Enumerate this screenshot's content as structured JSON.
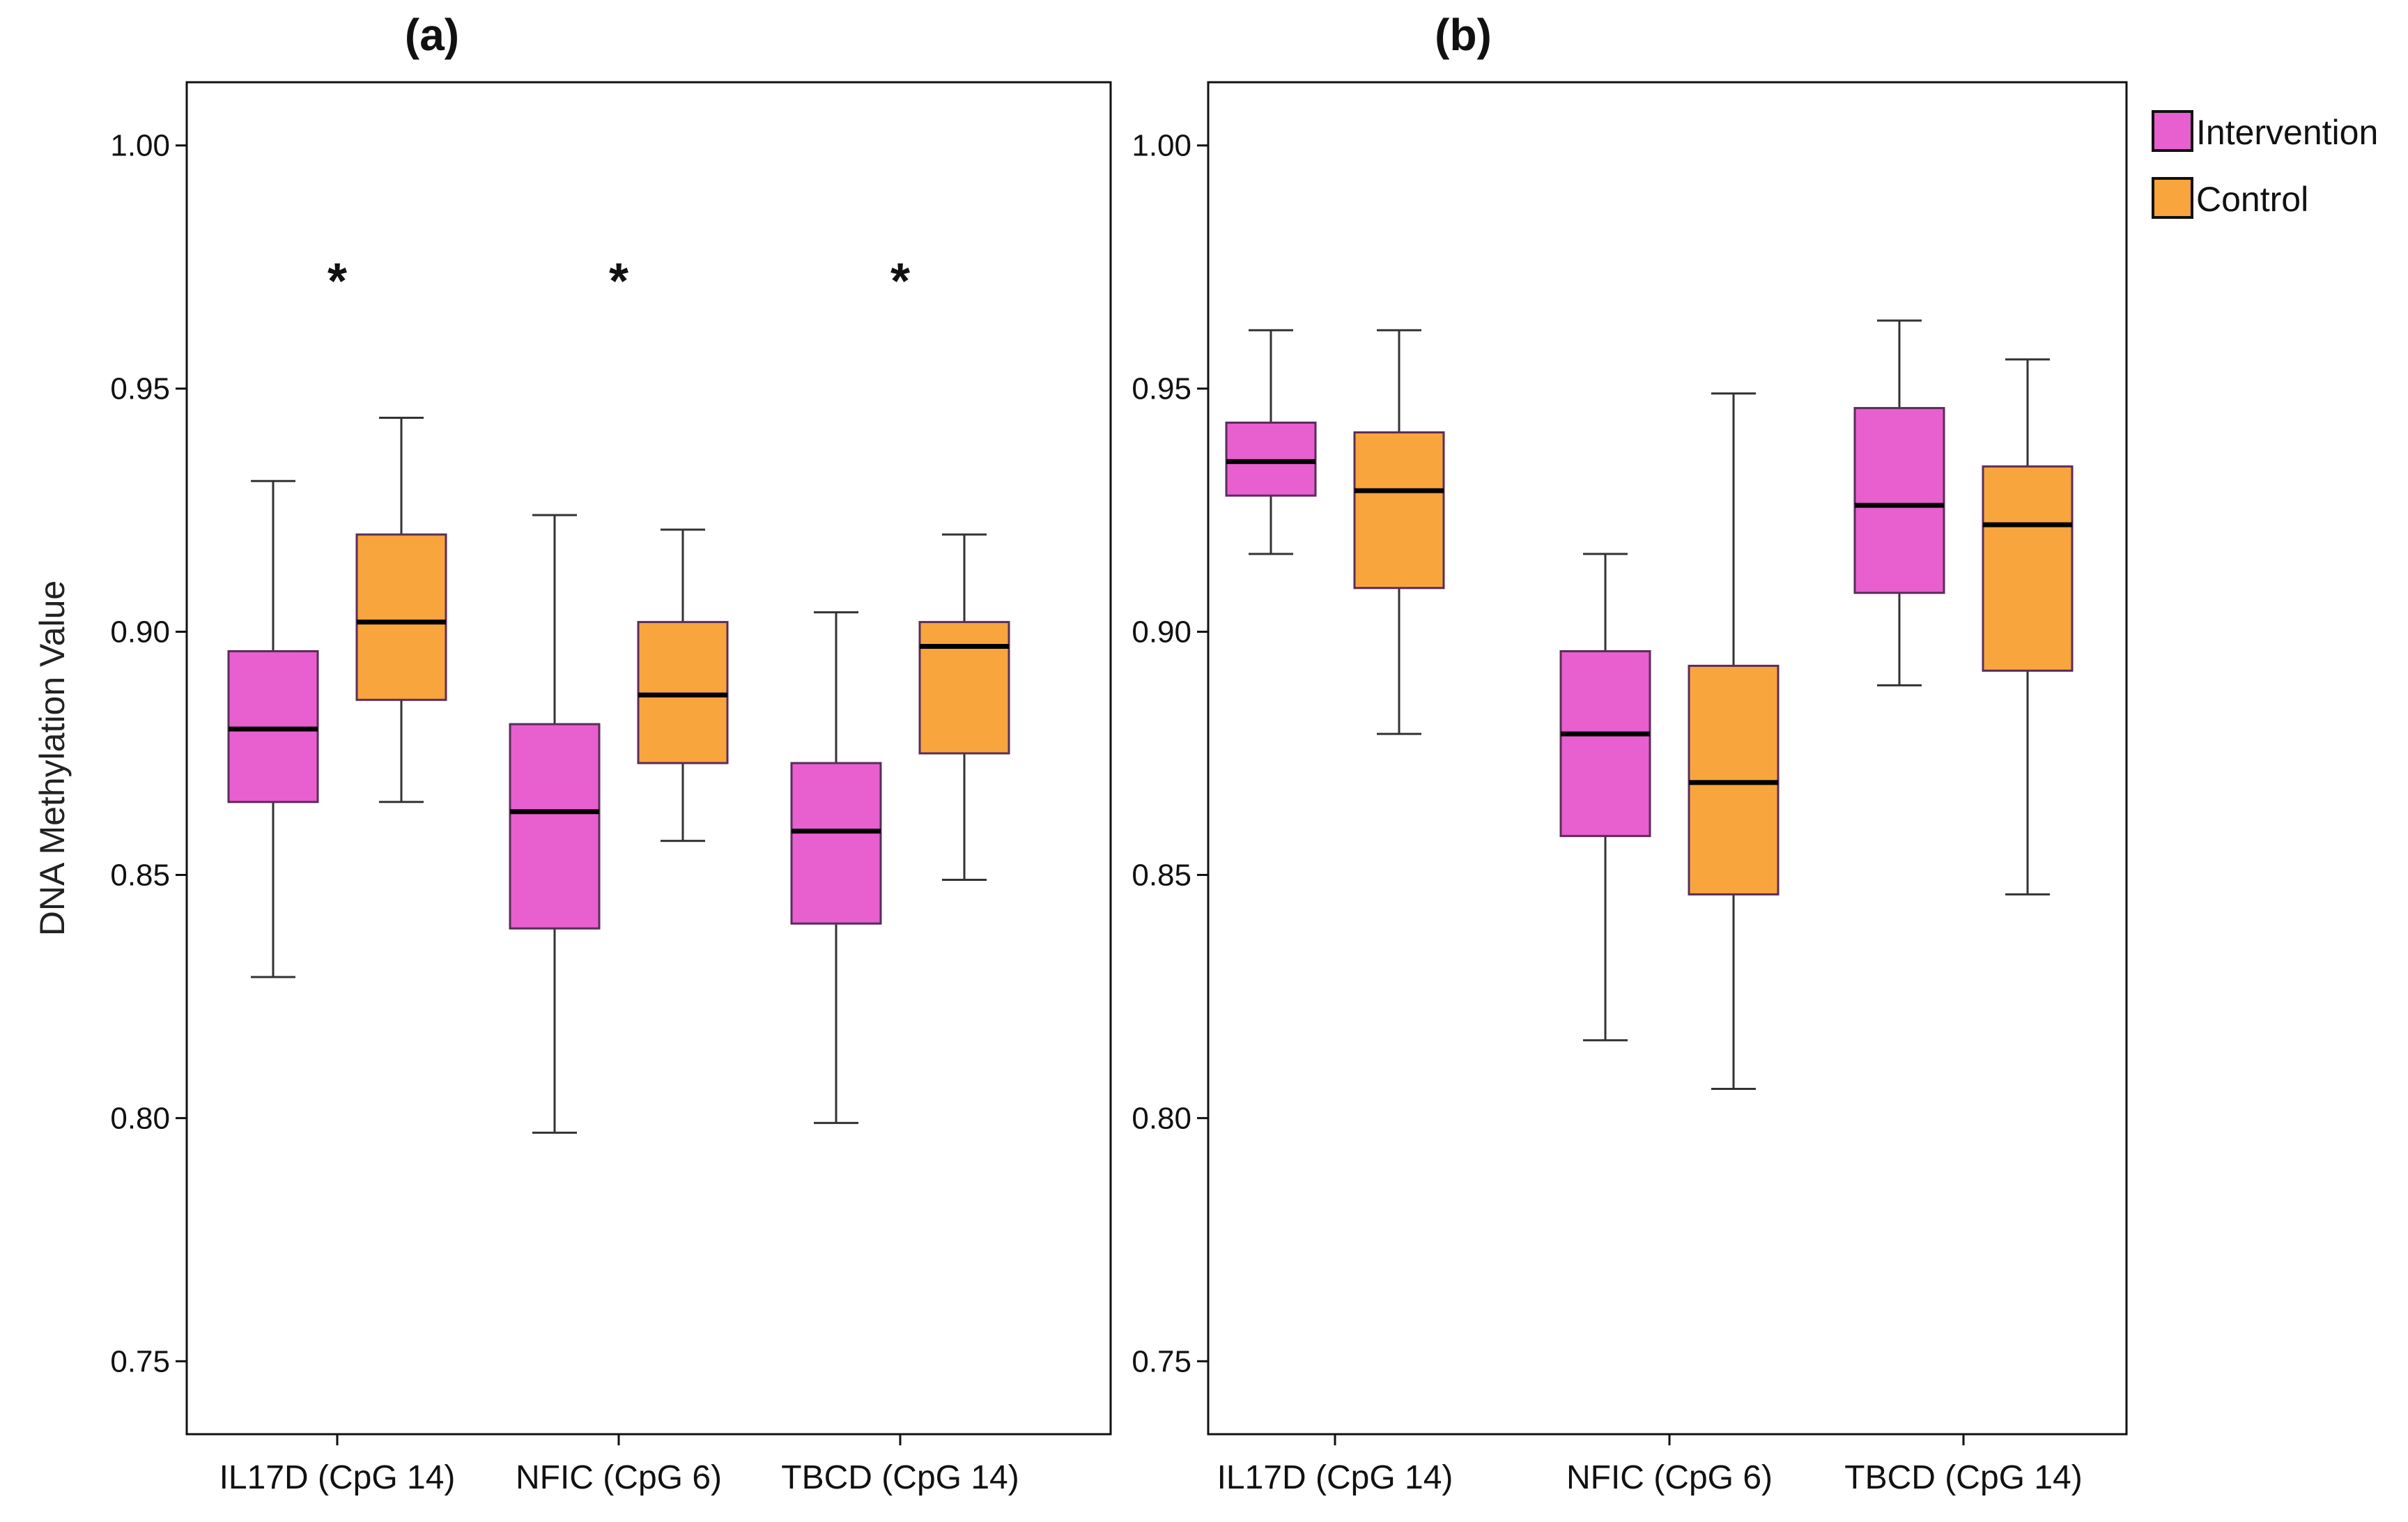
{
  "chart_data": [
    {
      "type": "box",
      "title": "(a)",
      "ylabel": "DNA Methylation Value",
      "xlabel": "",
      "ylim": [
        0.735,
        1.013
      ],
      "yticks": [
        "0.75",
        "0.80",
        "0.85",
        "0.90",
        "0.95",
        "1.00"
      ],
      "categories": [
        "IL17D (CpG 14)",
        "NFIC (CpG 6)",
        "TBCD (CpG 14)"
      ],
      "significance": [
        "*",
        "*",
        "*"
      ],
      "significance_y": 0.974,
      "series": [
        {
          "name": "Intervention",
          "color": "#e85fcf",
          "boxes": [
            {
              "whisker_low": 0.829,
              "q1": 0.865,
              "median": 0.88,
              "q3": 0.896,
              "whisker_high": 0.931
            },
            {
              "whisker_low": 0.797,
              "q1": 0.839,
              "median": 0.863,
              "q3": 0.881,
              "whisker_high": 0.924
            },
            {
              "whisker_low": 0.799,
              "q1": 0.84,
              "median": 0.859,
              "q3": 0.873,
              "whisker_high": 0.904
            }
          ]
        },
        {
          "name": "Control",
          "color": "#f8a53d",
          "boxes": [
            {
              "whisker_low": 0.865,
              "q1": 0.886,
              "median": 0.902,
              "q3": 0.92,
              "whisker_high": 0.944
            },
            {
              "whisker_low": 0.857,
              "q1": 0.873,
              "median": 0.887,
              "q3": 0.902,
              "whisker_high": 0.921
            },
            {
              "whisker_low": 0.849,
              "q1": 0.875,
              "median": 0.897,
              "q3": 0.902,
              "whisker_high": 0.92
            }
          ]
        }
      ]
    },
    {
      "type": "box",
      "title": "(b)",
      "ylabel": "",
      "xlabel": "",
      "ylim": [
        0.735,
        1.013
      ],
      "yticks": [
        "0.75",
        "0.80",
        "0.85",
        "0.90",
        "0.95",
        "1.00"
      ],
      "categories": [
        "IL17D (CpG 14)",
        "NFIC (CpG 6)",
        "TBCD (CpG 14)"
      ],
      "significance": [
        "",
        "",
        ""
      ],
      "series": [
        {
          "name": "Intervention",
          "color": "#e85fcf",
          "boxes": [
            {
              "whisker_low": 0.916,
              "q1": 0.928,
              "median": 0.935,
              "q3": 0.943,
              "whisker_high": 0.962
            },
            {
              "whisker_low": 0.816,
              "q1": 0.858,
              "median": 0.879,
              "q3": 0.896,
              "whisker_high": 0.916
            },
            {
              "whisker_low": 0.889,
              "q1": 0.908,
              "median": 0.926,
              "q3": 0.946,
              "whisker_high": 0.964
            }
          ]
        },
        {
          "name": "Control",
          "color": "#f8a53d",
          "boxes": [
            {
              "whisker_low": 0.879,
              "q1": 0.909,
              "median": 0.929,
              "q3": 0.941,
              "whisker_high": 0.962
            },
            {
              "whisker_low": 0.806,
              "q1": 0.846,
              "median": 0.869,
              "q3": 0.893,
              "whisker_high": 0.949
            },
            {
              "whisker_low": 0.846,
              "q1": 0.892,
              "median": 0.922,
              "q3": 0.934,
              "whisker_high": 0.956
            }
          ]
        }
      ]
    }
  ],
  "legend": {
    "items": [
      {
        "label": "Intervention",
        "color": "#e85fcf"
      },
      {
        "label": "Control",
        "color": "#f8a53d"
      }
    ]
  },
  "colors": {
    "box_stroke": "#5a2d5a",
    "axis": "#111111"
  }
}
